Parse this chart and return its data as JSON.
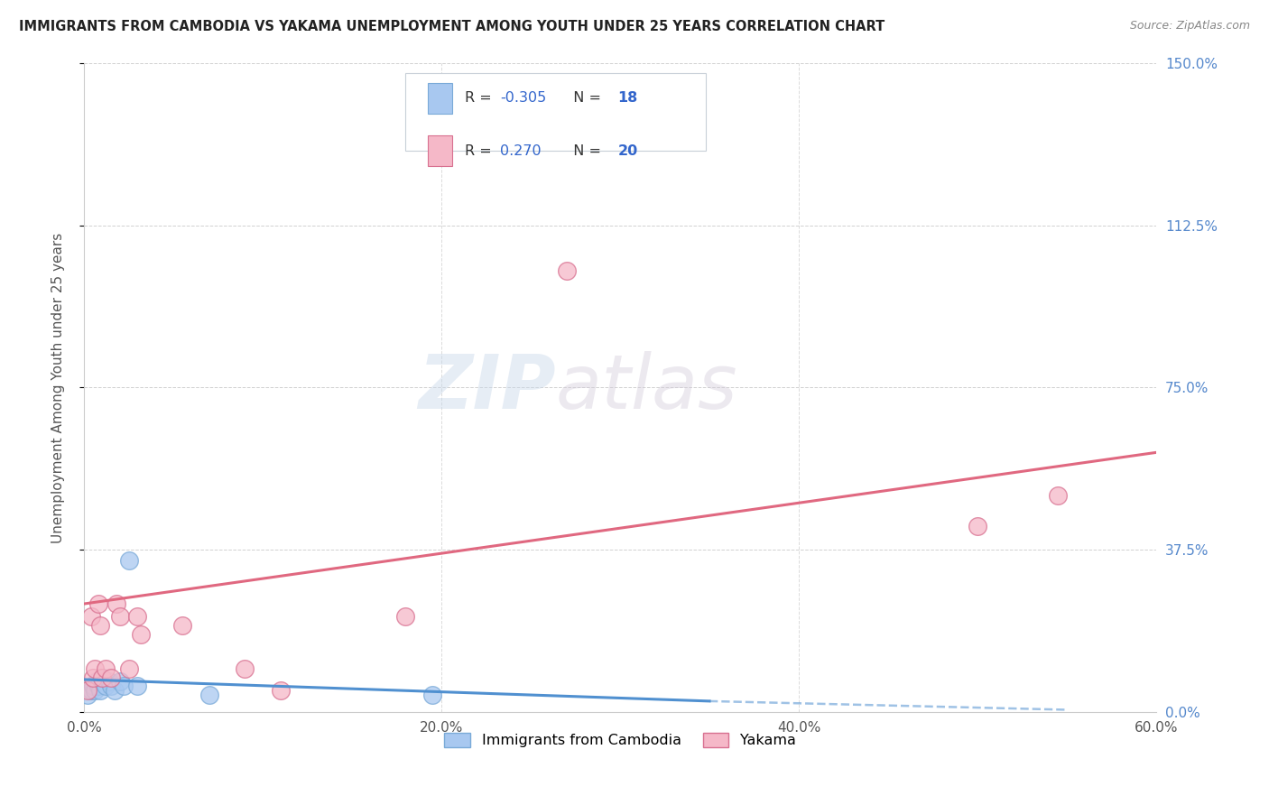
{
  "title": "IMMIGRANTS FROM CAMBODIA VS YAKAMA UNEMPLOYMENT AMONG YOUTH UNDER 25 YEARS CORRELATION CHART",
  "source": "Source: ZipAtlas.com",
  "xlabel_ticks": [
    "0.0%",
    "20.0%",
    "40.0%",
    "60.0%"
  ],
  "xlabel_tick_vals": [
    0.0,
    0.2,
    0.4,
    0.6
  ],
  "ylabel": "Unemployment Among Youth under 25 years",
  "ylabel_ticks": [
    "0.0%",
    "37.5%",
    "75.0%",
    "112.5%",
    "150.0%"
  ],
  "ylabel_tick_vals": [
    0.0,
    0.375,
    0.75,
    1.125,
    1.5
  ],
  "xlim": [
    0.0,
    0.6
  ],
  "ylim": [
    0.0,
    1.5
  ],
  "watermark_zip": "ZIP",
  "watermark_atlas": "atlas",
  "color_blue": "#a8c8f0",
  "color_pink": "#f5b8c8",
  "color_blue_line": "#5090d0",
  "color_pink_line": "#e06880",
  "color_blue_edge": "#7aaad8",
  "color_pink_edge": "#d87090",
  "scatter_blue_x": [
    0.002,
    0.004,
    0.005,
    0.006,
    0.007,
    0.008,
    0.009,
    0.01,
    0.012,
    0.014,
    0.015,
    0.017,
    0.02,
    0.022,
    0.025,
    0.03,
    0.07,
    0.195
  ],
  "scatter_blue_y": [
    0.04,
    0.05,
    0.06,
    0.05,
    0.07,
    0.06,
    0.05,
    0.08,
    0.06,
    0.07,
    0.06,
    0.05,
    0.07,
    0.06,
    0.35,
    0.06,
    0.04,
    0.04
  ],
  "scatter_pink_x": [
    0.002,
    0.004,
    0.005,
    0.006,
    0.008,
    0.009,
    0.01,
    0.012,
    0.015,
    0.018,
    0.02,
    0.025,
    0.03,
    0.032,
    0.055,
    0.09,
    0.11,
    0.18,
    0.27,
    0.5,
    0.545
  ],
  "scatter_pink_y": [
    0.05,
    0.22,
    0.08,
    0.1,
    0.25,
    0.2,
    0.08,
    0.1,
    0.08,
    0.25,
    0.22,
    0.1,
    0.22,
    0.18,
    0.2,
    0.1,
    0.05,
    0.22,
    1.02,
    0.43,
    0.5
  ],
  "trend_blue_x0": 0.0,
  "trend_blue_y0": 0.075,
  "trend_blue_x1": 0.35,
  "trend_blue_y1": 0.025,
  "trend_blue_dash_x1": 0.55,
  "trend_blue_dash_y1": 0.005,
  "trend_pink_x0": 0.0,
  "trend_pink_y0": 0.25,
  "trend_pink_x1": 0.6,
  "trend_pink_y1": 0.6,
  "grid_color": "#cccccc",
  "background_color": "#ffffff",
  "right_tick_color": "#5588cc",
  "legend_box_color": "#f0f4f8",
  "legend_edge_color": "#c8d0d8"
}
